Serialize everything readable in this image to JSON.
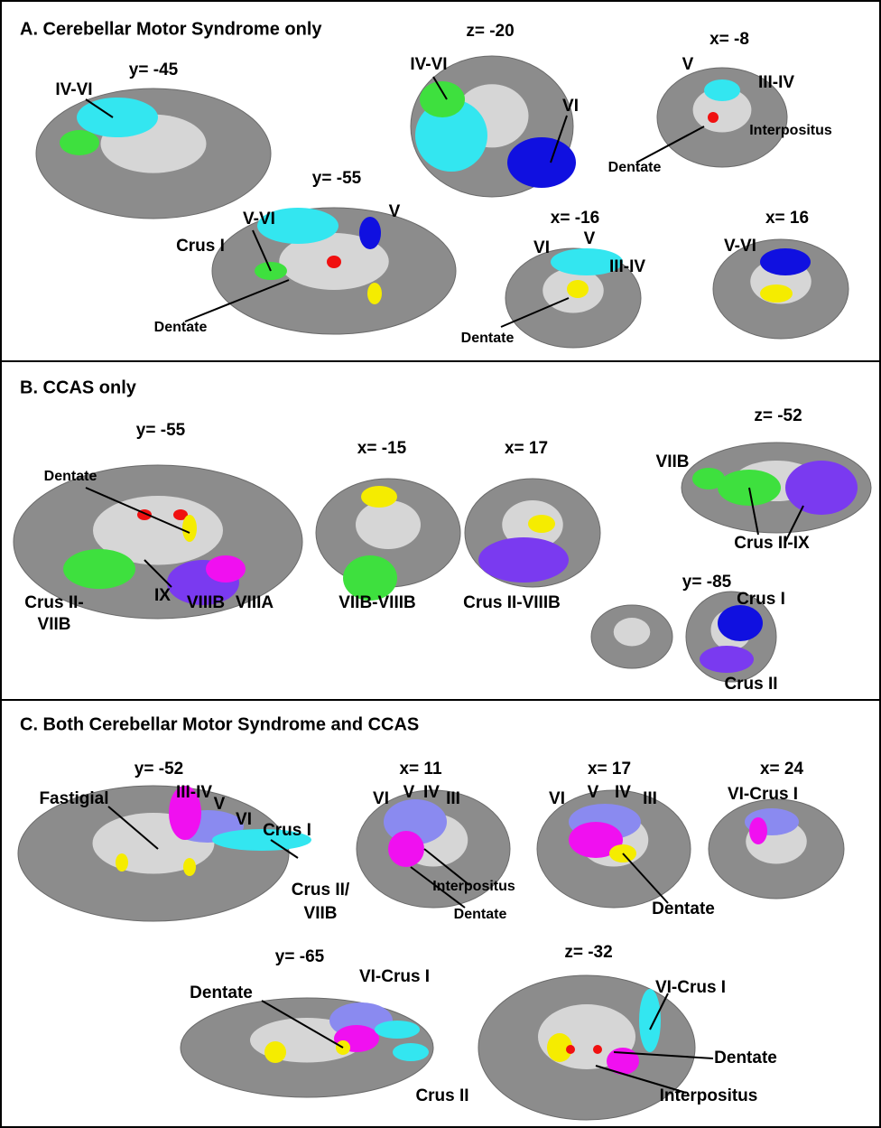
{
  "panels": [
    {
      "title": "A. Cerebellar Motor Syndrome only",
      "slices": [
        {
          "coordinate": "y= -45",
          "labels": [
            "IV-VI"
          ]
        },
        {
          "coordinate": "z= -20",
          "labels": [
            "IV-VI",
            "VI"
          ]
        },
        {
          "coordinate": "x= -8",
          "labels": [
            "V",
            "III-IV",
            "Interpositus",
            "Dentate"
          ]
        },
        {
          "coordinate": "y= -55",
          "labels": [
            "V-VI",
            "V",
            "Crus I",
            "Dentate"
          ]
        },
        {
          "coordinate": "x= -16",
          "labels": [
            "VI",
            "V",
            "III-IV",
            "Dentate"
          ]
        },
        {
          "coordinate": "x= 16",
          "labels": [
            "V-VI"
          ]
        }
      ]
    },
    {
      "title": "B. CCAS only",
      "slices": [
        {
          "coordinate": "y= -55",
          "labels": [
            "Dentate",
            "Crus II-",
            "VIIB",
            "IX",
            "VIIIB",
            "VIIIA"
          ]
        },
        {
          "coordinate": "x= -15",
          "labels": [
            "VIIB-VIIIB"
          ]
        },
        {
          "coordinate": "x= 17",
          "labels": [
            "Crus II-VIIIB"
          ]
        },
        {
          "coordinate": "z= -52",
          "labels": [
            "VIIB",
            "Crus II-IX"
          ]
        },
        {
          "coordinate": "y= -85",
          "labels": [
            "Crus I",
            "Crus II"
          ]
        }
      ]
    },
    {
      "title": "C. Both Cerebellar Motor Syndrome and CCAS",
      "slices": [
        {
          "coordinate": "y= -52",
          "labels": [
            "Fastigial",
            "III-IV",
            "V",
            "VI",
            "Crus I",
            "Crus II/",
            "VIIB"
          ]
        },
        {
          "coordinate": "x= 11",
          "labels": [
            "VI",
            "V",
            "IV",
            "III",
            "Interpositus",
            "Dentate"
          ]
        },
        {
          "coordinate": "x= 17",
          "labels": [
            "VI",
            "V",
            "IV",
            "III",
            "Dentate"
          ]
        },
        {
          "coordinate": "x= 24",
          "labels": [
            "VI-Crus I"
          ]
        },
        {
          "coordinate": "y= -65",
          "labels": [
            "Dentate",
            "VI-Crus I",
            "Crus II"
          ]
        },
        {
          "coordinate": "z= -32",
          "labels": [
            "VI-Crus I",
            "Dentate",
            "Interpositus"
          ]
        }
      ]
    }
  ]
}
